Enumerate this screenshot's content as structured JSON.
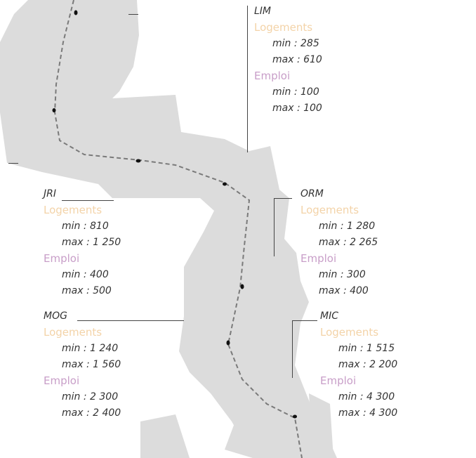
{
  "colors": {
    "land": "#dcdcdc",
    "route": "#7a7a7a",
    "station": "#111111",
    "logements": "#f3d3a8",
    "emploi": "#c89ec8",
    "text": "#333333",
    "leader": "#444444"
  },
  "blocks": [
    {
      "id": "lim",
      "code": "LIM",
      "logements_label": "Logements",
      "logements_min": "min : 285",
      "logements_max": "max : 610",
      "emploi_label": "Emploi",
      "emploi_min": "min : 100",
      "emploi_max": "max : 100"
    },
    {
      "id": "jri",
      "code": "JRI",
      "logements_label": "Logements",
      "logements_min": "min : 810",
      "logements_max": "max : 1 250",
      "emploi_label": "Emploi",
      "emploi_min": "min : 400",
      "emploi_max": "max : 500"
    },
    {
      "id": "orm",
      "code": "ORM",
      "logements_label": "Logements",
      "logements_min": "min : 1 280",
      "logements_max": "max : 2 265",
      "emploi_label": "Emploi",
      "emploi_min": "min : 300",
      "emploi_max": "max : 400"
    },
    {
      "id": "mog",
      "code": "MOG",
      "logements_label": "Logements",
      "logements_min": "min : 1 240",
      "logements_max": "max : 1 560",
      "emploi_label": "Emploi",
      "emploi_min": "min : 2 300",
      "emploi_max": "max : 2 400"
    },
    {
      "id": "mic",
      "code": "MIC",
      "logements_label": "Logements",
      "logements_min": "min : 1 515",
      "logements_max": "max : 2 200",
      "emploi_label": "Emploi",
      "emploi_min": "min : 4 300",
      "emploi_max": "max : 4 300"
    }
  ]
}
